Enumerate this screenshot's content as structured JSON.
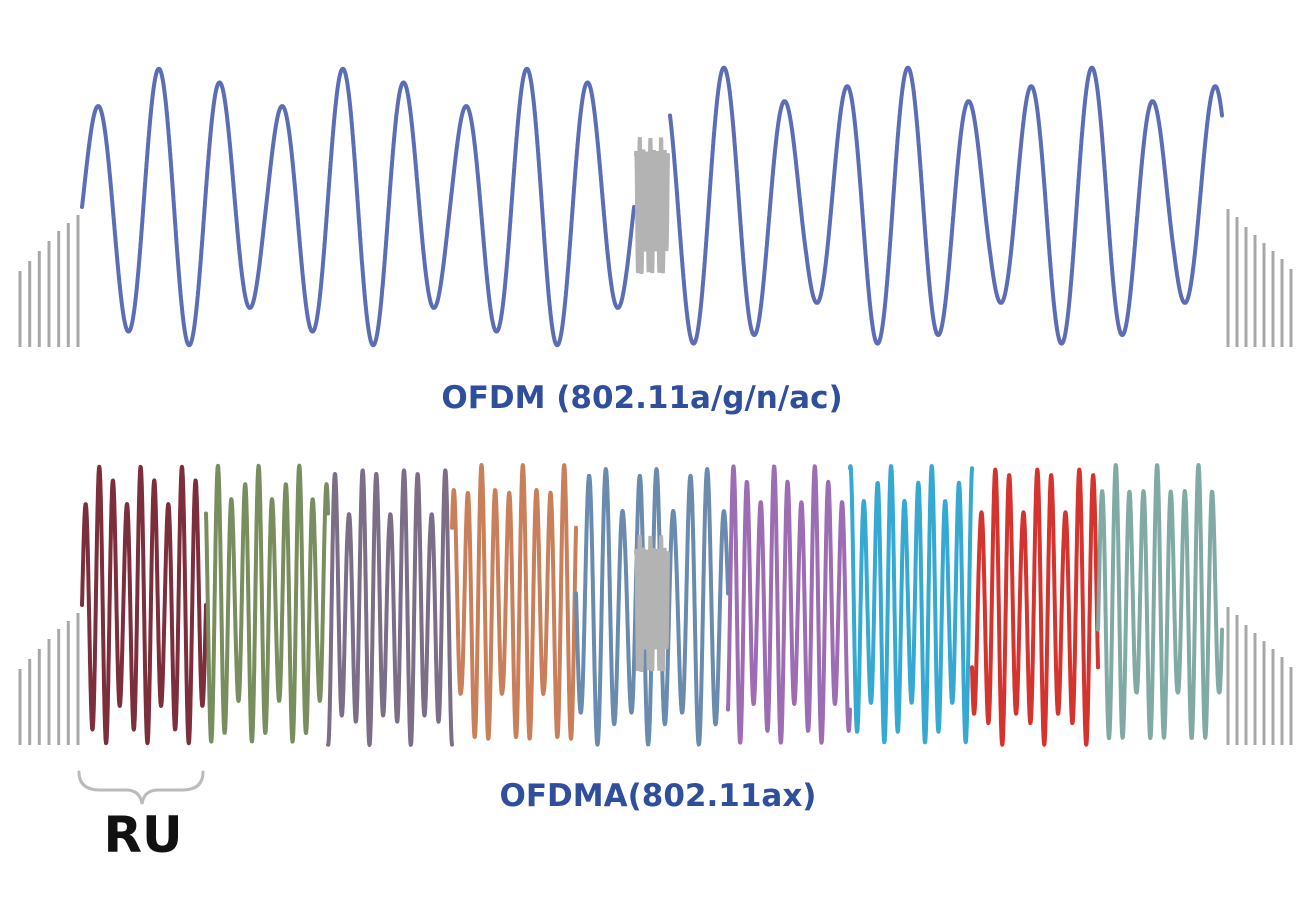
{
  "diagram": {
    "ofdm": {
      "caption": "OFDM (802.11a/g/n/ac)",
      "subcarrier_color": "#5b6db5",
      "dc_color": "#b3b3b3",
      "guard_color": "#a8a8a8"
    },
    "ofdma": {
      "caption": "OFDMA(802.11ax)",
      "dc_color": "#b3b3b3",
      "guard_color": "#a8a8a8",
      "resource_units": [
        {
          "color": "#7d2e3c"
        },
        {
          "color": "#7a8d5e"
        },
        {
          "color": "#7b6e86"
        },
        {
          "color": "#c97f5a"
        },
        {
          "color": "#6a8bae"
        },
        {
          "color": "#9c6db3"
        },
        {
          "color": "#35a9d1"
        },
        {
          "color": "#d5332e"
        },
        {
          "color": "#82aaa5"
        }
      ]
    },
    "ru_label": "RU",
    "brace_color": "#bbbbbb"
  }
}
